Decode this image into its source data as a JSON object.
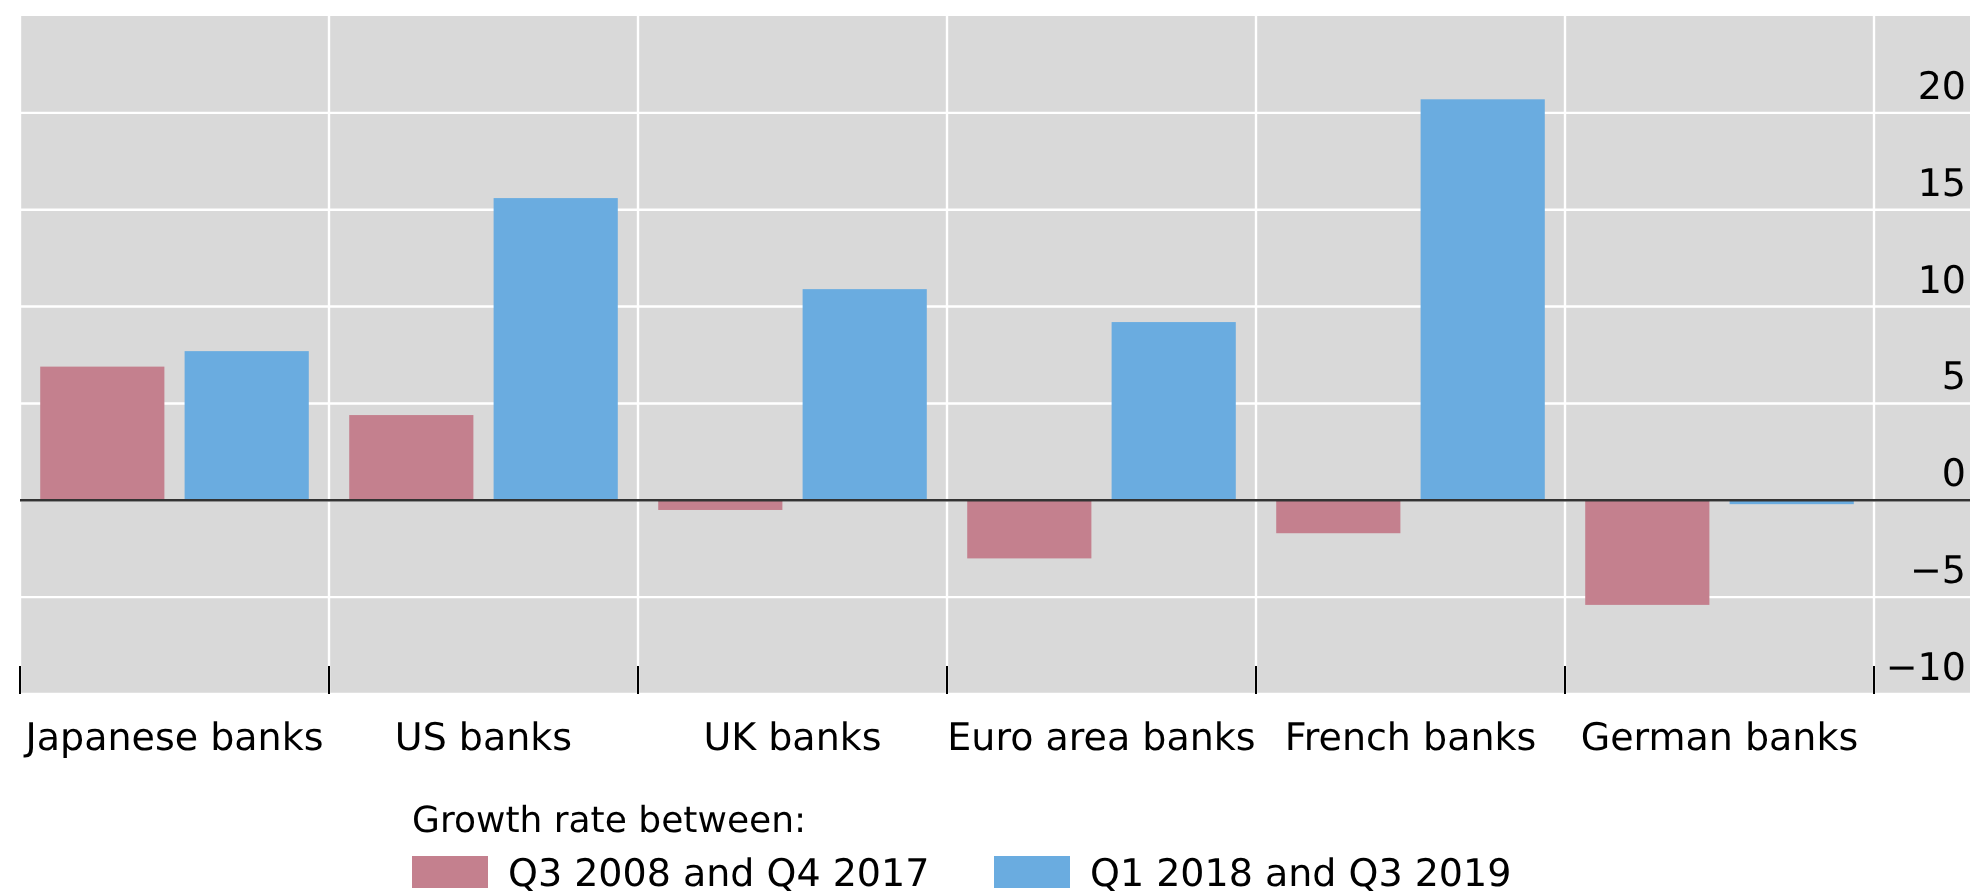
{
  "chart_data": {
    "type": "bar",
    "categories": [
      "Japanese banks",
      "US banks",
      "UK banks",
      "Euro area banks",
      "French banks",
      "German banks"
    ],
    "series": [
      {
        "name": "Q3 2008 and Q4 2017",
        "color": "#c4808e",
        "values": [
          6.9,
          4.4,
          -0.5,
          -3.0,
          -1.7,
          -5.4
        ]
      },
      {
        "name": "Q1 2018 and Q3 2019",
        "color": "#6aace0",
        "values": [
          7.7,
          15.6,
          10.9,
          9.2,
          20.7,
          -0.2
        ]
      }
    ],
    "ylim": [
      -10,
      25
    ],
    "yticks": [
      {
        "value": -10,
        "label": "−10"
      },
      {
        "value": -5,
        "label": "−5"
      },
      0,
      5,
      10,
      15,
      20
    ],
    "grid": true,
    "legend": "bottom",
    "legend_title": "Growth rate between:"
  }
}
